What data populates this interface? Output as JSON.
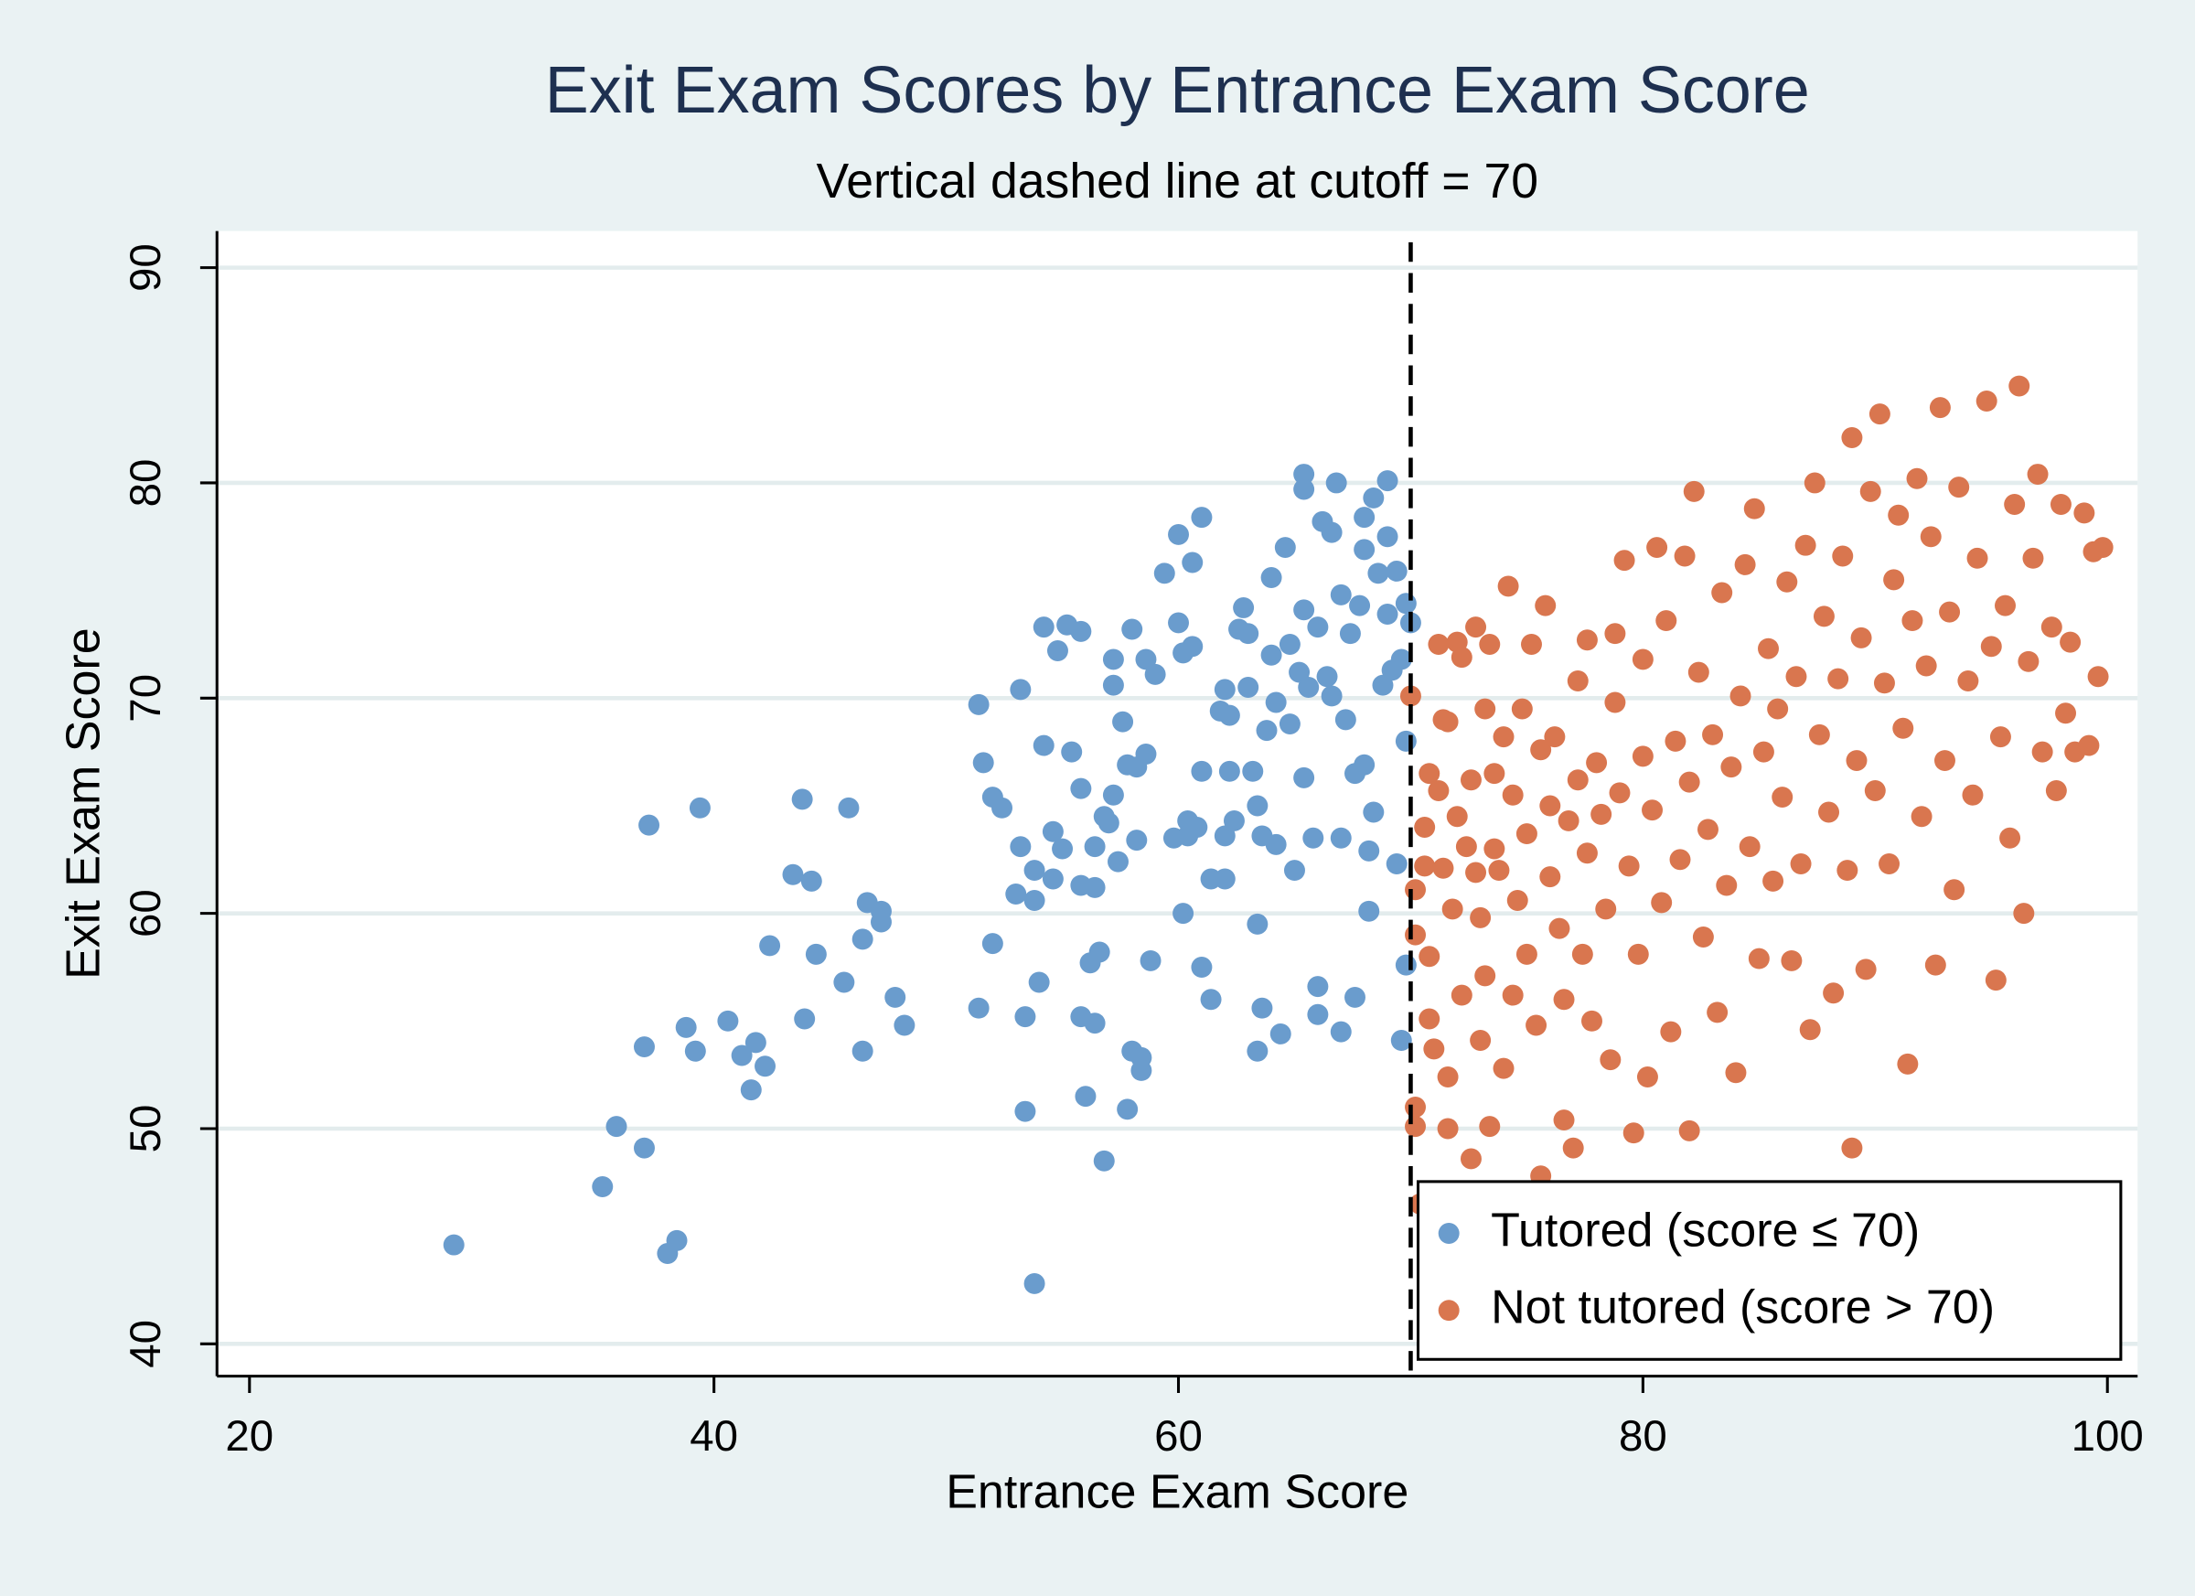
{
  "chart_data": {
    "type": "scatter",
    "title": "Exit Exam Scores by Entrance Exam Score",
    "subtitle": "Vertical dashed line at cutoff = 70",
    "x_label": "Entrance Exam Score",
    "y_label": "Exit Exam Score",
    "cutoff": 70,
    "xlim": [
      18.6,
      101.3
    ],
    "ylim": [
      38.5,
      91.7
    ],
    "xticks": [
      20,
      40,
      60,
      80,
      100
    ],
    "yticks": [
      40,
      50,
      60,
      70,
      80,
      90
    ],
    "grid": true,
    "legend": "lower right",
    "series": [
      {
        "name": "Tutored (score ≤ 70)",
        "color": "#6a9ccd",
        "x": [
          28.8,
          35.2,
          35.8,
          37,
          37,
          37.2,
          38,
          38.4,
          38.8,
          39.2,
          39.4,
          40.6,
          41.2,
          41.6,
          41.8,
          42.2,
          42.4,
          43.4,
          43.8,
          43.9,
          44.2,
          44.4,
          45.6,
          45.8,
          46.4,
          46.6,
          46.4,
          47.2,
          47.2,
          47.8,
          48.2,
          51.4,
          51.4,
          51.6,
          52,
          52,
          52.4,
          53,
          53.2,
          53.2,
          53.4,
          53.4,
          53.8,
          53.8,
          54,
          53.8,
          54.2,
          54.2,
          54.6,
          54.6,
          54.8,
          55,
          55.2,
          55.4,
          55.8,
          55.8,
          55.8,
          55.8,
          56,
          56.2,
          56.4,
          56.4,
          56.4,
          56.6,
          56.8,
          56.8,
          57,
          57.2,
          57.2,
          57.2,
          57.4,
          57.6,
          57.8,
          57.8,
          58,
          58,
          58.2,
          58.2,
          58.4,
          58.4,
          58.6,
          58.6,
          58.8,
          59,
          59.4,
          59.8,
          60,
          60,
          60.2,
          60.2,
          60.4,
          60.4,
          60.6,
          60.6,
          60.8,
          61,
          61,
          61,
          61.4,
          61.4,
          61.8,
          62,
          62,
          62,
          62.2,
          62.2,
          62.4,
          62.6,
          62.8,
          63,
          63,
          63.2,
          63.4,
          63.6,
          63.4,
          63.4,
          63.6,
          63.8,
          64,
          64,
          64.2,
          64.2,
          64.4,
          64.6,
          64.8,
          64.8,
          65,
          65.2,
          65.4,
          65.4,
          65.4,
          65.4,
          65.6,
          65.8,
          66,
          66,
          66,
          66.2,
          66.4,
          66.6,
          66.6,
          66.8,
          67,
          67,
          67,
          67.2,
          67.4,
          67.6,
          67.6,
          67.8,
          68,
          68,
          68,
          68.2,
          68.2,
          68.4,
          68.4,
          68.6,
          68.8,
          69,
          69,
          69,
          69.2,
          69.4,
          69.4,
          69.6,
          69.6,
          69.8,
          69.8,
          69.8,
          70
        ],
        "values": [
          44.6,
          47.3,
          50.1,
          49.1,
          53.8,
          64.1,
          44.2,
          44.8,
          54.7,
          53.6,
          64.9,
          55,
          53.4,
          51.8,
          54,
          52.9,
          58.5,
          61.8,
          65.3,
          55.1,
          61.5,
          58.1,
          56.8,
          64.9,
          58.8,
          60.5,
          53.6,
          59.6,
          60.1,
          56.1,
          54.8,
          55.6,
          69.7,
          67,
          65.4,
          58.6,
          64.9,
          60.9,
          70.4,
          63.1,
          55.2,
          50.8,
          62,
          60.6,
          56.8,
          42.8,
          73.3,
          67.8,
          63.8,
          61.6,
          72.2,
          63,
          73.4,
          67.5,
          73.1,
          65.8,
          55.2,
          61.3,
          51.5,
          57.7,
          63.1,
          61.2,
          54.9,
          58.2,
          48.5,
          64.5,
          64.2,
          71.8,
          70.6,
          65.5,
          62.4,
          68.9,
          66.9,
          50.9,
          73.2,
          53.6,
          63.4,
          66.8,
          53.3,
          52.7,
          71.8,
          67.4,
          57.8,
          71.1,
          75.8,
          63.5,
          77.6,
          73.5,
          72.1,
          60,
          64.3,
          63.6,
          76.3,
          72.4,
          64,
          78.4,
          66.6,
          57.5,
          61.6,
          56,
          69.4,
          70.4,
          63.6,
          61.6,
          69.2,
          66.6,
          64.3,
          73.2,
          74.2,
          73,
          70.5,
          66.6,
          65,
          63.6,
          59.5,
          53.6,
          55.6,
          68.5,
          75.6,
          72,
          69.8,
          63.2,
          54.4,
          77,
          72.5,
          68.8,
          62,
          71.2,
          80.4,
          79.7,
          74.1,
          66.3,
          70.5,
          63.5,
          73.3,
          56.6,
          55.3,
          78.2,
          71,
          77.7,
          70.1,
          80,
          74.8,
          63.5,
          54.5,
          69,
          73,
          66.5,
          56.1,
          74.3,
          78.4,
          76.9,
          66.9,
          62.9,
          60.1,
          64.7,
          79.3,
          75.8,
          70.6,
          77.5,
          80.1,
          73.9,
          71.3,
          75.9,
          62.3,
          71.8,
          54.1,
          74.4,
          68,
          57.6,
          73.5
        ]
      },
      {
        "name": "Not tutored (score > 70)",
        "color": "#d9764f",
        "x": [
          70,
          70.2,
          70.2,
          70.2,
          70.2,
          70.4,
          70.6,
          70.6,
          70.8,
          70.8,
          70.8,
          71,
          71.2,
          71.2,
          71.4,
          71.4,
          71.6,
          71.6,
          71.6,
          71.8,
          72,
          72,
          72.2,
          72.2,
          72.4,
          72.6,
          72.6,
          72.8,
          72.8,
          73,
          73,
          73.2,
          73.2,
          73.4,
          73.4,
          73.6,
          73.6,
          73.8,
          74,
          74,
          74.2,
          74.4,
          74.4,
          74.6,
          74.8,
          75,
          75,
          75.2,
          75.4,
          75.6,
          75.6,
          75.8,
          76,
          76,
          76.2,
          76.4,
          76.6,
          76.6,
          76.8,
          77,
          77.2,
          77.2,
          77.4,
          77.6,
          77.6,
          77.8,
          78,
          78.2,
          78.4,
          78.6,
          78.8,
          78.8,
          79,
          79.2,
          79.4,
          79.6,
          79.8,
          80,
          80,
          80.2,
          80.4,
          80.6,
          80.8,
          81,
          81.2,
          81.4,
          81.6,
          81.8,
          82,
          82,
          82.2,
          82.4,
          82.6,
          82.8,
          83,
          83.2,
          83.4,
          83.6,
          83.8,
          84,
          84.2,
          84.4,
          84.6,
          84.8,
          85,
          85.2,
          85.4,
          85.6,
          85.8,
          86,
          86.2,
          86.4,
          86.6,
          86.8,
          87,
          87.2,
          87.4,
          87.6,
          87.8,
          88,
          88.2,
          88.4,
          88.6,
          88.8,
          89,
          89,
          89.2,
          89.4,
          89.6,
          89.8,
          90,
          90.2,
          90.4,
          90.6,
          90.8,
          91,
          91.2,
          91.4,
          91.6,
          91.8,
          92,
          92.2,
          92.4,
          92.6,
          92.8,
          93,
          93.2,
          93.4,
          93.6,
          94,
          94.2,
          94.4,
          94.8,
          95,
          95.2,
          95.4,
          95.6,
          95.8,
          96,
          96.2,
          96.4,
          96.6,
          96.8,
          97,
          97.2,
          97.6,
          97.8,
          98,
          98.2,
          98.4,
          98.6,
          99,
          99.2,
          99.4,
          99.6,
          99.8
        ],
        "values": [
          70.1,
          61.1,
          59,
          51,
          50.1,
          46.5,
          64,
          62.2,
          66.5,
          58,
          55.1,
          53.7,
          72.5,
          65.7,
          69,
          62.1,
          68.9,
          52.4,
          50,
          60.2,
          72.6,
          64.5,
          71.9,
          56.2,
          63.1,
          48.6,
          66.2,
          73.3,
          61.9,
          59.8,
          54.1,
          69.5,
          57.1,
          72.5,
          50.1,
          66.5,
          63,
          62,
          68.2,
          52.8,
          75.2,
          65.5,
          56.2,
          60.6,
          69.5,
          58.1,
          63.7,
          72.5,
          54.8,
          67.6,
          47.8,
          74.3,
          61.7,
          65,
          68.2,
          59.3,
          50.4,
          56,
          64.3,
          49.1,
          66.2,
          70.8,
          58.1,
          72.7,
          62.8,
          55,
          67,
          64.6,
          60.2,
          53.2,
          69.8,
          73,
          65.6,
          76.4,
          62.2,
          49.8,
          58.1,
          67.3,
          71.8,
          52.4,
          64.8,
          77,
          60.5,
          73.6,
          54.5,
          68,
          62.5,
          76.6,
          49.9,
          66.1,
          79.6,
          71.2,
          58.9,
          63.9,
          68.3,
          55.4,
          74.9,
          61.3,
          66.8,
          52.6,
          70.1,
          76.2,
          63.1,
          78.8,
          57.9,
          67.5,
          72.3,
          61.5,
          69.5,
          65.4,
          75.4,
          57.8,
          71,
          62.3,
          77.1,
          54.6,
          80,
          68.3,
          73.8,
          64.7,
          56.3,
          70.9,
          76.6,
          62,
          49.1,
          82.1,
          67.1,
          72.8,
          57.4,
          79.6,
          65.7,
          83.2,
          70.7,
          62.3,
          75.5,
          78.5,
          68.6,
          53,
          73.6,
          80.2,
          64.5,
          71.5,
          77.5,
          57.6,
          83.5,
          67.1,
          74,
          61.1,
          79.8,
          70.8,
          65.5,
          76.5,
          83.8,
          72.4,
          56.9,
          68.2,
          74.3,
          63.5,
          79,
          84.5,
          60,
          71.7,
          76.5,
          80.4,
          67.5,
          73.3,
          65.7,
          79,
          69.3,
          72.6,
          67.5,
          78.6,
          67.8,
          76.8,
          71,
          77
        ]
      }
    ]
  }
}
